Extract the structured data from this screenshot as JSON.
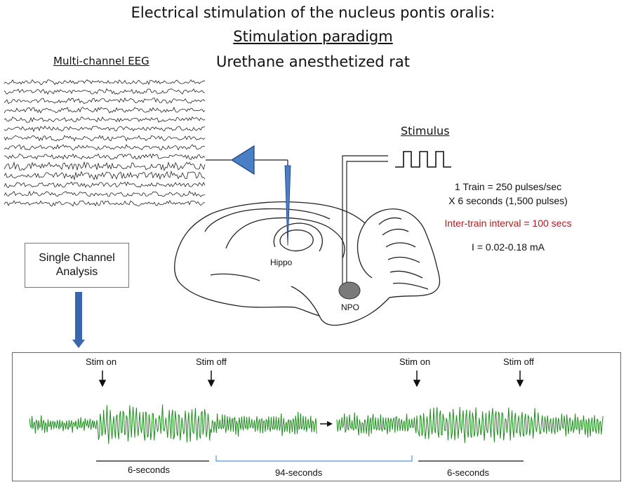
{
  "title": {
    "line1": "Electrical stimulation of the nucleus pontis oralis:",
    "line2": "Stimulation paradigm",
    "line3": "Urethane anesthetized rat"
  },
  "eeg": {
    "label": "Multi-channel EEG",
    "channel_count": 14
  },
  "stimulus": {
    "label": "Stimulus",
    "train_line1": "1 Train = 250 pulses/sec",
    "train_line2": "X 6 seconds (1,500 pulses)",
    "inter_train": "Inter-train interval = 100 secs",
    "current": "I = 0.02-0.18 mA"
  },
  "analysis": {
    "box_label": "Single Channel Analysis"
  },
  "brain": {
    "hippo_label": "Hippo",
    "npo_label": "NPO"
  },
  "timeline": {
    "stim_on_1": "Stim on",
    "stim_off_1": "Stim off",
    "stim_on_2": "Stim on",
    "stim_off_2": "Stim off",
    "dur_first": "6-seconds",
    "dur_gap": "94-seconds",
    "dur_second": "6-seconds"
  },
  "colors": {
    "trace": "#1e8c1e",
    "electrode": "#4a7fc6",
    "arrow": "#3a66ad",
    "gap_bracket": "#5b8fd0",
    "inter_train": "#b01b1b"
  }
}
